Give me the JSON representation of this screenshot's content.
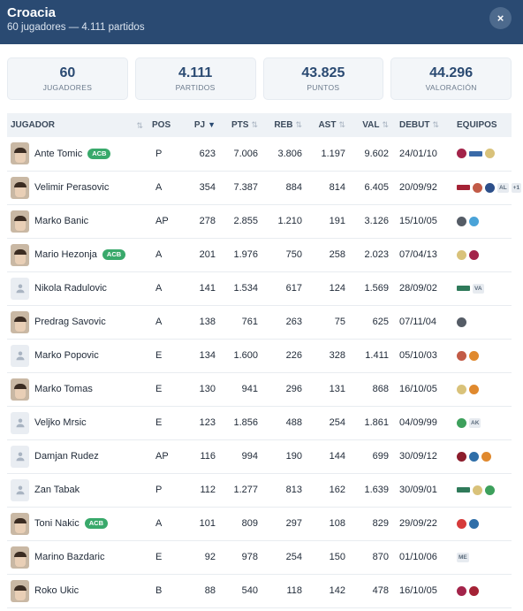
{
  "header": {
    "title": "Croacia",
    "subtitle": "60 jugadores — 4.111 partidos",
    "close_label": "×"
  },
  "stats": [
    {
      "value": "60",
      "label": "JUGADORES"
    },
    {
      "value": "4.111",
      "label": "PARTIDOS"
    },
    {
      "value": "43.825",
      "label": "PUNTOS"
    },
    {
      "value": "44.296",
      "label": "VALORACIÓN"
    }
  ],
  "table": {
    "columns": [
      "JUGADOR",
      "POS",
      "PJ",
      "PTS",
      "REB",
      "AST",
      "VAL",
      "DEBUT",
      "EQUIPOS"
    ],
    "sort_icon": "⇅",
    "sort_active_icon": "▼",
    "badge_label": "ACB",
    "rows": [
      {
        "name": "Ante Tomic",
        "acb": true,
        "avatar": "photo",
        "pos": "P",
        "pj": "623",
        "pts": "7.006",
        "reb": "3.806",
        "ast": "1.197",
        "val": "9.602",
        "debut": "24/01/10",
        "teams": [
          {
            "icon": "barcelona-logo",
            "color": "#a3244a"
          },
          {
            "icon": "team-wordmark",
            "color": "#3a6aa8",
            "wide": true
          },
          {
            "icon": "real-madrid-logo",
            "color": "#d9c27a"
          }
        ]
      },
      {
        "name": "Velimir Perasovic",
        "acb": false,
        "avatar": "photo",
        "pos": "A",
        "pj": "354",
        "pts": "7.387",
        "reb": "884",
        "ast": "814",
        "val": "6.405",
        "debut": "20/09/92",
        "teams": [
          {
            "icon": "team-wordmark",
            "color": "#a42235",
            "wide": true
          },
          {
            "icon": "team-logo",
            "color": "#c25b47"
          },
          {
            "icon": "team-logo",
            "color": "#2c4f8a"
          },
          {
            "label": "AL"
          },
          {
            "label": "+1"
          }
        ]
      },
      {
        "name": "Marko Banic",
        "acb": false,
        "avatar": "photo",
        "pos": "AP",
        "pj": "278",
        "pts": "2.855",
        "reb": "1.210",
        "ast": "191",
        "val": "3.126",
        "debut": "15/10/05",
        "teams": [
          {
            "icon": "team-logo",
            "color": "#555c66"
          },
          {
            "icon": "team-logo",
            "color": "#4aa3d8"
          }
        ]
      },
      {
        "name": "Mario Hezonja",
        "acb": true,
        "avatar": "photo",
        "pos": "A",
        "pj": "201",
        "pts": "1.976",
        "reb": "750",
        "ast": "258",
        "val": "2.023",
        "debut": "07/04/13",
        "teams": [
          {
            "icon": "real-madrid-logo",
            "color": "#d9c27a"
          },
          {
            "icon": "barcelona-logo",
            "color": "#a3244a"
          }
        ]
      },
      {
        "name": "Nikola Radulovic",
        "acb": false,
        "avatar": "placeholder",
        "pos": "A",
        "pj": "141",
        "pts": "1.534",
        "reb": "617",
        "ast": "124",
        "val": "1.569",
        "debut": "28/09/02",
        "teams": [
          {
            "icon": "team-wordmark",
            "color": "#2f7a5a",
            "wide": true
          },
          {
            "label": "VA"
          }
        ]
      },
      {
        "name": "Predrag Savovic",
        "acb": false,
        "avatar": "photo",
        "pos": "A",
        "pj": "138",
        "pts": "761",
        "reb": "263",
        "ast": "75",
        "val": "625",
        "debut": "07/11/04",
        "teams": [
          {
            "icon": "team-logo",
            "color": "#555c66"
          }
        ]
      },
      {
        "name": "Marko Popovic",
        "acb": false,
        "avatar": "placeholder",
        "pos": "E",
        "pj": "134",
        "pts": "1.600",
        "reb": "226",
        "ast": "328",
        "val": "1.411",
        "debut": "05/10/03",
        "teams": [
          {
            "icon": "team-logo",
            "color": "#c25b47"
          },
          {
            "icon": "team-logo",
            "color": "#e0892e"
          }
        ]
      },
      {
        "name": "Marko Tomas",
        "acb": false,
        "avatar": "photo",
        "pos": "E",
        "pj": "130",
        "pts": "941",
        "reb": "296",
        "ast": "131",
        "val": "868",
        "debut": "16/10/05",
        "teams": [
          {
            "icon": "real-madrid-logo",
            "color": "#d9c27a"
          },
          {
            "icon": "team-logo",
            "color": "#e0892e"
          }
        ]
      },
      {
        "name": "Veljko Mrsic",
        "acb": false,
        "avatar": "placeholder",
        "pos": "E",
        "pj": "123",
        "pts": "1.856",
        "reb": "488",
        "ast": "254",
        "val": "1.861",
        "debut": "04/09/99",
        "teams": [
          {
            "icon": "team-logo",
            "color": "#3da05c"
          },
          {
            "label": "AK"
          }
        ]
      },
      {
        "name": "Damjan Rudez",
        "acb": false,
        "avatar": "placeholder",
        "pos": "AP",
        "pj": "116",
        "pts": "994",
        "reb": "190",
        "ast": "144",
        "val": "699",
        "debut": "30/09/12",
        "teams": [
          {
            "icon": "team-logo",
            "color": "#8c1d2c"
          },
          {
            "icon": "team-logo",
            "color": "#2f6ea8"
          },
          {
            "icon": "team-logo",
            "color": "#e0892e"
          }
        ]
      },
      {
        "name": "Zan Tabak",
        "acb": false,
        "avatar": "placeholder",
        "pos": "P",
        "pj": "112",
        "pts": "1.277",
        "reb": "813",
        "ast": "162",
        "val": "1.639",
        "debut": "30/09/01",
        "teams": [
          {
            "icon": "team-wordmark",
            "color": "#2f7a5a",
            "wide": true
          },
          {
            "icon": "real-madrid-logo",
            "color": "#d9c27a"
          },
          {
            "icon": "team-logo",
            "color": "#3da05c"
          }
        ]
      },
      {
        "name": "Toni Nakic",
        "acb": true,
        "avatar": "photo",
        "pos": "A",
        "pj": "101",
        "pts": "809",
        "reb": "297",
        "ast": "108",
        "val": "829",
        "debut": "29/09/22",
        "teams": [
          {
            "icon": "team-logo",
            "color": "#d63b3b"
          },
          {
            "icon": "team-logo",
            "color": "#2f6ea8"
          }
        ]
      },
      {
        "name": "Marino Bazdaric",
        "acb": false,
        "avatar": "photo",
        "pos": "E",
        "pj": "92",
        "pts": "978",
        "reb": "254",
        "ast": "150",
        "val": "870",
        "debut": "01/10/06",
        "teams": [
          {
            "label": "ME"
          }
        ]
      },
      {
        "name": "Roko Ukic",
        "acb": false,
        "avatar": "photo",
        "pos": "B",
        "pj": "88",
        "pts": "540",
        "reb": "118",
        "ast": "142",
        "val": "478",
        "debut": "16/10/05",
        "teams": [
          {
            "icon": "barcelona-logo",
            "color": "#a3244a"
          },
          {
            "icon": "team-logo",
            "color": "#a42235"
          }
        ]
      }
    ]
  }
}
